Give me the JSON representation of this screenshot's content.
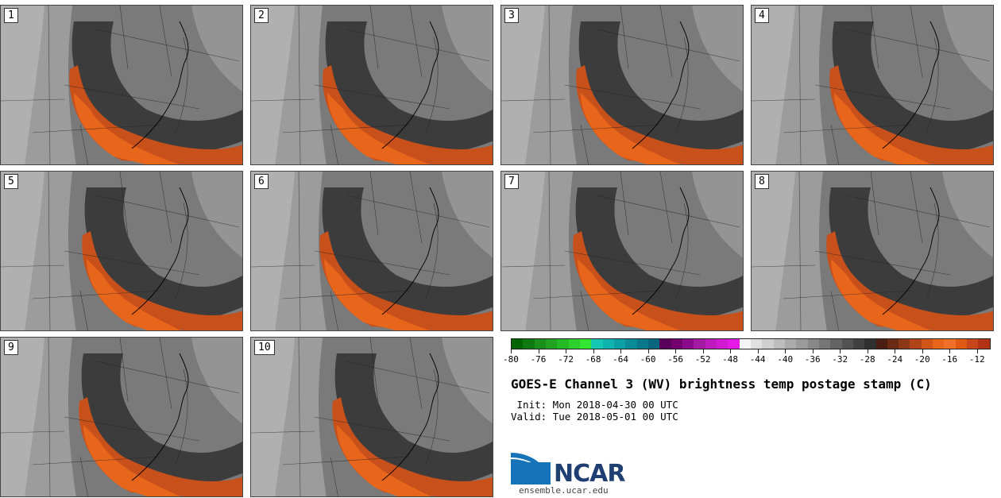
{
  "panels": [
    {
      "label": "1"
    },
    {
      "label": "2"
    },
    {
      "label": "3"
    },
    {
      "label": "4"
    },
    {
      "label": "5"
    },
    {
      "label": "6"
    },
    {
      "label": "7"
    },
    {
      "label": "8"
    },
    {
      "label": "9"
    },
    {
      "label": "10"
    }
  ],
  "colorbar": {
    "ticks": [
      "-80",
      "-76",
      "-72",
      "-68",
      "-64",
      "-60",
      "-56",
      "-52",
      "-48",
      "-44",
      "-40",
      "-36",
      "-32",
      "-28",
      "-24",
      "-20",
      "-16",
      "-12"
    ],
    "min": -80,
    "max": -10,
    "colors": [
      "#006400",
      "#0f7a0f",
      "#1a8f1a",
      "#21a321",
      "#26b926",
      "#2dd02d",
      "#33e533",
      "#14c8b4",
      "#10b4ae",
      "#0ca0a4",
      "#0a8c96",
      "#08788a",
      "#06667d",
      "#5a005a",
      "#73006e",
      "#8c0a8c",
      "#a51aa5",
      "#be1abe",
      "#d21ad2",
      "#e61ae6",
      "#f5f5f5",
      "#e0e0e0",
      "#cfcfcf",
      "#bdbdbd",
      "#ababab",
      "#9a9a9a",
      "#888888",
      "#767676",
      "#646464",
      "#525252",
      "#404040",
      "#303030",
      "#4a1e12",
      "#6b2a14",
      "#8c3716",
      "#b04418",
      "#d2551a",
      "#e8651c",
      "#f0702a",
      "#e05a14",
      "#c8461a",
      "#b43214"
    ]
  },
  "title": "GOES-E Channel 3 (WV) brightness temp postage stamp (C)",
  "init": " Init: Mon 2018-04-30 00 UTC",
  "valid": "Valid: Tue 2018-05-01 00 UTC",
  "logo": {
    "text": "NCAR",
    "site": "ensemble.ucar.edu"
  }
}
